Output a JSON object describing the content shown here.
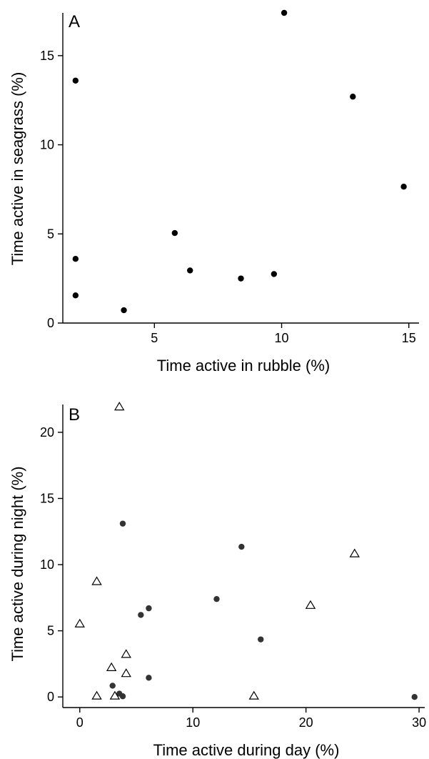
{
  "chart_data": [
    {
      "type": "scatter",
      "panel_label": "A",
      "xlabel": "Time active in rubble (%)",
      "ylabel": "Time active in seagrass (%)",
      "xlim": [
        1.4,
        15.4
      ],
      "ylim": [
        0,
        17.4
      ],
      "xticks": [
        5,
        10,
        15
      ],
      "yticks": [
        0,
        5,
        10,
        15
      ],
      "series": [
        {
          "marker": "circle",
          "color": "#000000",
          "points": [
            [
              10.1,
              17.4
            ],
            [
              1.9,
              13.6
            ],
            [
              12.8,
              12.7
            ],
            [
              14.8,
              7.65
            ],
            [
              5.8,
              5.05
            ],
            [
              1.9,
              3.6
            ],
            [
              6.4,
              2.95
            ],
            [
              9.7,
              2.75
            ],
            [
              8.4,
              2.5
            ],
            [
              1.9,
              1.55
            ],
            [
              3.8,
              0.72
            ]
          ]
        }
      ]
    },
    {
      "type": "scatter",
      "panel_label": "B",
      "xlabel": "Time active during day (%)",
      "ylabel": "Time active during night (%)",
      "xlim": [
        -1.5,
        30.5
      ],
      "ylim": [
        -0.8,
        22.1
      ],
      "xticks": [
        0,
        10,
        20,
        30
      ],
      "yticks": [
        0,
        5,
        10,
        15,
        20
      ],
      "series": [
        {
          "marker": "circle",
          "color": "#333333",
          "points": [
            [
              3.8,
              13.1
            ],
            [
              14.3,
              11.35
            ],
            [
              12.1,
              7.4
            ],
            [
              6.1,
              6.7
            ],
            [
              5.4,
              6.2
            ],
            [
              16.0,
              4.35
            ],
            [
              6.1,
              1.45
            ],
            [
              2.9,
              0.85
            ],
            [
              3.5,
              0.25
            ],
            [
              3.8,
              0.05
            ],
            [
              29.6,
              0.0
            ]
          ]
        },
        {
          "marker": "triangle-open",
          "color": "#000000",
          "points": [
            [
              3.5,
              21.9
            ],
            [
              24.3,
              10.8
            ],
            [
              1.5,
              8.7
            ],
            [
              20.4,
              6.9
            ],
            [
              0.0,
              5.5
            ],
            [
              4.1,
              3.2
            ],
            [
              2.8,
              2.2
            ],
            [
              4.1,
              1.75
            ],
            [
              1.5,
              0.05
            ],
            [
              3.1,
              0.05
            ],
            [
              15.4,
              0.05
            ]
          ]
        }
      ]
    }
  ]
}
